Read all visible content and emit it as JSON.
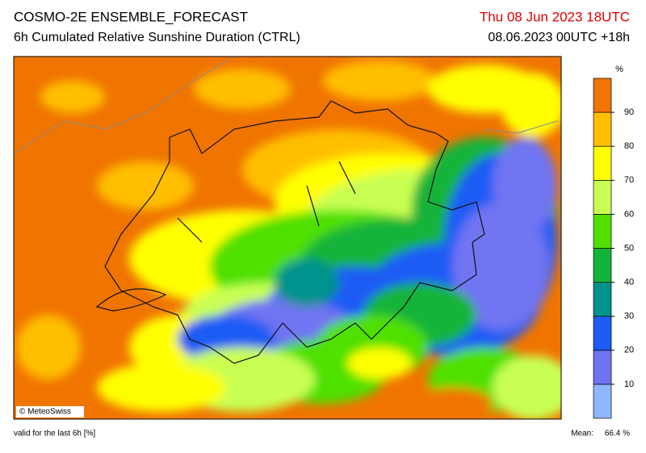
{
  "header": {
    "title": "COSMO-2E ENSEMBLE_FORECAST",
    "subtitle": "6h Cumulated Relative Sunshine Duration (CTRL)",
    "valid_time": "Thu 08 Jun 2023 18UTC",
    "run": "08.06.2023 00UTC +18h"
  },
  "legend": {
    "unit": "%",
    "range": [
      0,
      100
    ],
    "ticks": [
      10,
      20,
      30,
      40,
      50,
      60,
      70,
      80,
      90
    ],
    "colors": [
      "#8fb6ff",
      "#6f74f2",
      "#1c5cf5",
      "#00928c",
      "#13b33a",
      "#4fe000",
      "#c9ff52",
      "#ffff00",
      "#ffbf00",
      "#f07400"
    ]
  },
  "credit": "© MeteoSwiss",
  "footer": {
    "note": "valid for the last 6h [%]",
    "mean_label": "Mean:",
    "mean": "66.4 %"
  }
}
